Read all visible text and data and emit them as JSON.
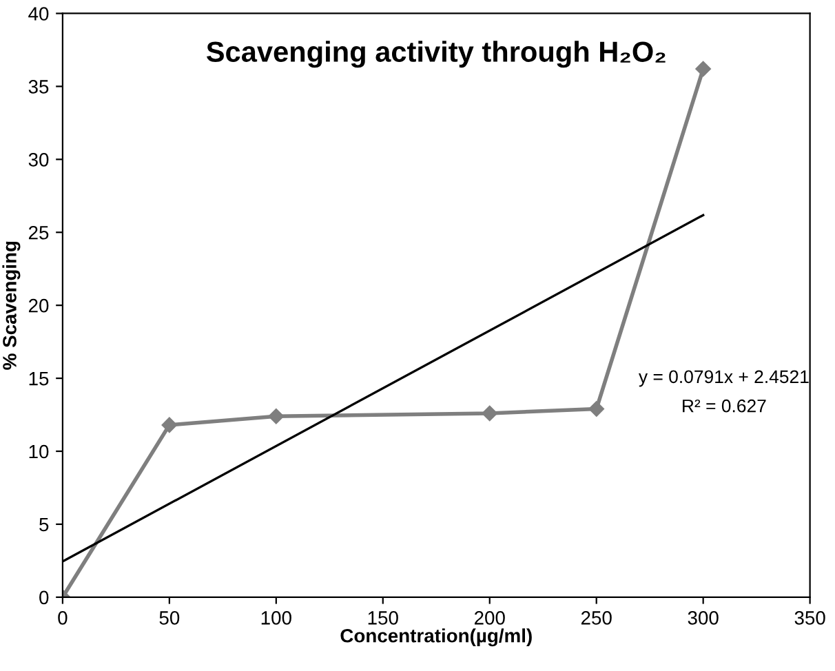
{
  "chart_data": {
    "type": "line",
    "title": "Scavenging activity through H₂O₂",
    "xlabel": "Concentration(µg/ml)",
    "ylabel": "% Scavenging",
    "series": [
      {
        "type": "line",
        "color": "#7f7f7f",
        "marker": "diamond",
        "x": [
          0,
          50,
          100,
          200,
          250,
          300
        ],
        "values": [
          0,
          11.8,
          12.4,
          12.6,
          12.9,
          36.2
        ]
      },
      {
        "type": "line",
        "color": "#000000",
        "marker": "none",
        "x": [
          0,
          300
        ],
        "values": [
          2.45,
          26.18
        ]
      }
    ],
    "annotations": [
      "y = 0.0791x + 2.4521",
      "R² = 0.627"
    ],
    "xlim": [
      0,
      350
    ],
    "xticks": [
      0,
      50,
      100,
      150,
      200,
      250,
      300,
      350
    ],
    "ylim": [
      0,
      40
    ],
    "yticks": [
      0,
      5,
      10,
      15,
      20,
      25,
      30,
      35,
      40
    ],
    "grid": false
  }
}
